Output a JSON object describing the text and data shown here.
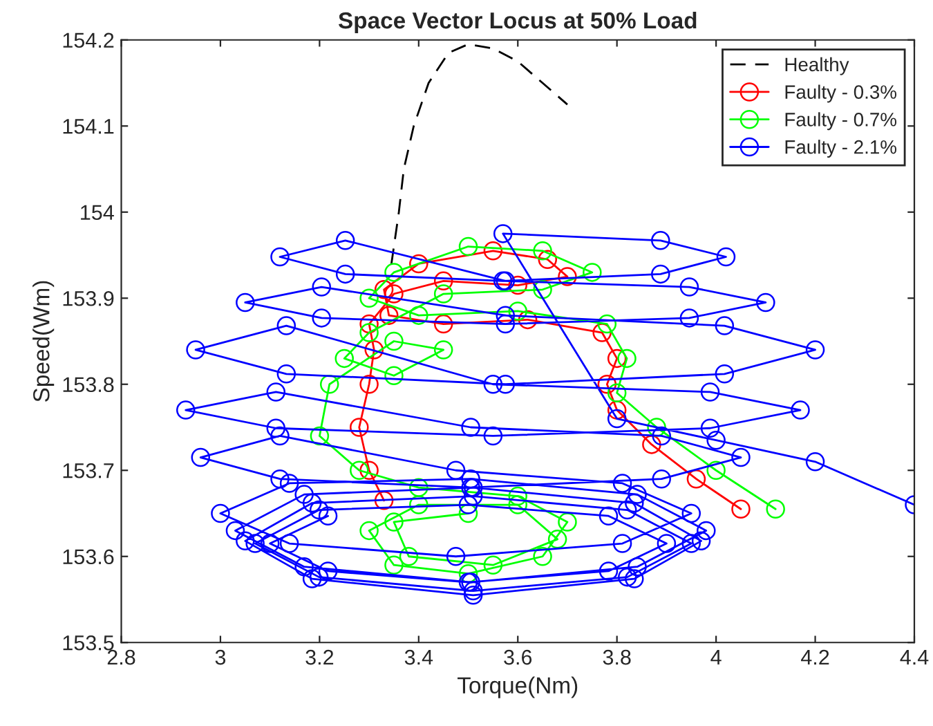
{
  "chart_data": {
    "type": "line",
    "title": "Space Vector Locus at 50% Load",
    "xlabel": "Torque(Nm)",
    "ylabel": "Speed(Wm)",
    "xlim": [
      2.8,
      4.4
    ],
    "xticks": [
      2.8,
      3,
      3.2,
      3.4,
      3.6,
      3.8,
      4,
      4.2,
      4.4
    ],
    "ylim": [
      153.5,
      154.2
    ],
    "yticks": [
      153.5,
      153.6,
      153.7,
      153.8,
      153.9,
      154,
      154.1,
      154.2
    ],
    "grid": false,
    "legend": "top right",
    "series": [
      {
        "name": "Healthy",
        "color": "#000000",
        "line_style": "dashed",
        "marker": "none",
        "x": [
          3.345,
          3.36,
          3.37,
          3.39,
          3.42,
          3.46,
          3.5,
          3.55,
          3.6,
          3.65,
          3.7
        ],
        "values": [
          153.94,
          154.0,
          154.05,
          154.1,
          154.15,
          154.185,
          154.195,
          154.19,
          154.175,
          154.15,
          154.125
        ]
      },
      {
        "name": "Faulty - 0.3%",
        "color": "#ff0000",
        "line_style": "solid",
        "marker": "circle",
        "x": [
          4.05,
          3.96,
          3.87,
          3.8,
          3.78,
          3.8,
          3.77,
          3.62,
          3.45,
          3.34,
          3.33,
          3.4,
          3.55,
          3.66,
          3.7,
          3.6,
          3.45,
          3.35,
          3.3,
          3.31,
          3.3,
          3.28,
          3.3,
          3.33
        ],
        "values": [
          153.655,
          153.69,
          153.73,
          153.77,
          153.8,
          153.83,
          153.86,
          153.875,
          153.87,
          153.88,
          153.91,
          153.94,
          153.955,
          153.945,
          153.925,
          153.915,
          153.92,
          153.905,
          153.87,
          153.84,
          153.8,
          153.75,
          153.7,
          153.665
        ]
      },
      {
        "name": "Faulty - 0.7%",
        "color": "#00ff00",
        "line_style": "solid",
        "marker": "circle",
        "x": [
          4.12,
          4.0,
          3.88,
          3.8,
          3.82,
          3.78,
          3.6,
          3.4,
          3.3,
          3.35,
          3.5,
          3.65,
          3.75,
          3.65,
          3.45,
          3.3,
          3.25,
          3.35,
          3.45,
          3.35,
          3.22,
          3.2,
          3.28,
          3.4,
          3.6,
          3.7,
          3.65,
          3.5,
          3.35,
          3.3,
          3.4,
          3.6,
          3.68,
          3.55,
          3.38,
          3.35,
          3.5
        ],
        "values": [
          153.655,
          153.7,
          153.75,
          153.79,
          153.83,
          153.87,
          153.885,
          153.88,
          153.9,
          153.93,
          153.96,
          153.955,
          153.93,
          153.91,
          153.905,
          153.86,
          153.83,
          153.81,
          153.84,
          153.85,
          153.8,
          153.74,
          153.7,
          153.68,
          153.67,
          153.64,
          153.6,
          153.58,
          153.59,
          153.63,
          153.66,
          153.66,
          153.62,
          153.59,
          153.6,
          153.64,
          153.65
        ]
      },
      {
        "name": "Faulty - 2.1%",
        "color": "#0000ff",
        "line_style": "solid",
        "marker": "circle",
        "x": [
          4.4,
          4.2,
          4.0,
          3.8,
          3.57,
          3.888,
          4.02,
          3.888,
          3.57,
          3.252,
          3.12,
          3.252,
          3.575,
          3.946,
          4.1,
          3.946,
          3.575,
          3.204,
          3.05,
          3.204,
          3.575,
          4.017,
          4.2,
          4.017,
          3.575,
          3.133,
          2.95,
          3.133,
          3.55,
          3.988,
          4.17,
          3.988,
          3.55,
          3.112,
          2.93,
          3.112,
          3.505,
          3.89,
          4.05,
          3.89,
          3.505,
          3.12,
          2.96,
          3.12,
          3.475,
          3.811,
          3.95,
          3.811,
          3.475,
          3.139,
          3.0,
          3.139,
          3.505,
          3.841,
          3.98,
          3.841,
          3.505,
          3.169,
          3.03,
          3.169,
          3.51,
          3.835,
          3.97,
          3.835,
          3.51,
          3.185,
          3.05,
          3.185,
          3.51,
          3.821,
          3.95,
          3.821,
          3.51,
          3.199,
          3.07,
          3.199,
          3.5,
          3.783,
          3.9,
          3.783,
          3.5,
          3.217,
          3.1,
          3.217
        ],
        "values": [
          153.66,
          153.71,
          153.735,
          153.76,
          153.975,
          153.967,
          153.948,
          153.928,
          153.92,
          153.928,
          153.948,
          153.967,
          153.92,
          153.913,
          153.895,
          153.877,
          153.87,
          153.877,
          153.895,
          153.913,
          153.88,
          153.868,
          153.84,
          153.812,
          153.8,
          153.812,
          153.84,
          153.868,
          153.8,
          153.791,
          153.77,
          153.749,
          153.74,
          153.749,
          153.77,
          153.791,
          153.75,
          153.74,
          153.715,
          153.69,
          153.68,
          153.69,
          153.715,
          153.74,
          153.7,
          153.685,
          153.65,
          153.615,
          153.6,
          153.615,
          153.65,
          153.685,
          153.69,
          153.672,
          153.63,
          153.588,
          153.57,
          153.588,
          153.63,
          153.672,
          153.68,
          153.662,
          153.618,
          153.574,
          153.555,
          153.574,
          153.618,
          153.662,
          153.67,
          153.654,
          153.615,
          153.576,
          153.56,
          153.576,
          153.615,
          153.654,
          153.66,
          153.647,
          153.615,
          153.583,
          153.57,
          153.583,
          153.615,
          153.647
        ]
      }
    ]
  }
}
